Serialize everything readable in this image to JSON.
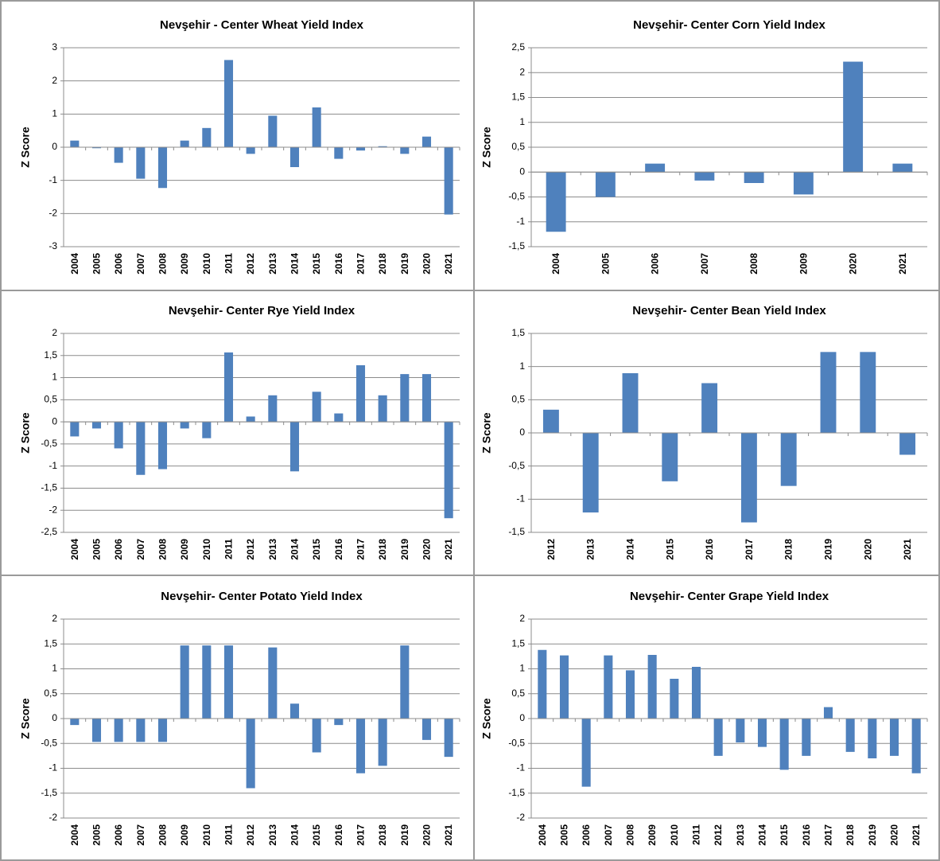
{
  "chart_data": [
    {
      "type": "bar",
      "title": "Nevşehir - Center Wheat Yield Index",
      "ylabel": "Z Score",
      "categories": [
        "2004",
        "2005",
        "2006",
        "2007",
        "2008",
        "2009",
        "2010",
        "2011",
        "2012",
        "2013",
        "2014",
        "2015",
        "2016",
        "2017",
        "2018",
        "2019",
        "2020",
        "2021"
      ],
      "values": [
        0.2,
        -0.03,
        -0.47,
        -0.95,
        -1.23,
        0.2,
        0.58,
        2.63,
        -0.2,
        0.95,
        -0.6,
        1.2,
        -0.35,
        -0.1,
        0.03,
        -0.2,
        0.32,
        -2.03
      ],
      "color": "#4f81bd",
      "ylim": [
        -3,
        3
      ],
      "yticks": [
        -3,
        -2,
        -1,
        0,
        1,
        2,
        3
      ],
      "grid": true
    },
    {
      "type": "bar",
      "title": "Nevşehir- Center Corn Yield Index",
      "ylabel": "Z Score",
      "categories": [
        "2004",
        "2005",
        "2006",
        "2007",
        "2008",
        "2009",
        "2020",
        "2021"
      ],
      "values": [
        -1.2,
        -0.5,
        0.17,
        -0.17,
        -0.22,
        -0.45,
        2.22,
        0.17
      ],
      "color": "#4f81bd",
      "ylim": [
        -1.5,
        2.5
      ],
      "yticks": [
        {
          "value": -1.5,
          "label": "-1,5"
        },
        -1,
        {
          "value": -0.5,
          "label": "-0,5"
        },
        0,
        {
          "value": 0.5,
          "label": "0,5"
        },
        1,
        {
          "value": 1.5,
          "label": "1,5"
        },
        2,
        {
          "value": 2.5,
          "label": "2,5"
        }
      ],
      "grid": true
    },
    {
      "type": "bar",
      "title": "Nevşehir- Center Rye Yield Index",
      "ylabel": "Z Score",
      "categories": [
        "2004",
        "2005",
        "2006",
        "2007",
        "2008",
        "2009",
        "2010",
        "2011",
        "2012",
        "2013",
        "2014",
        "2015",
        "2016",
        "2017",
        "2018",
        "2019",
        "2020",
        "2021"
      ],
      "values": [
        -0.33,
        -0.15,
        -0.6,
        -1.2,
        -1.07,
        -0.15,
        -0.37,
        1.57,
        0.12,
        0.6,
        -1.12,
        0.68,
        0.19,
        1.28,
        0.6,
        1.08,
        1.08,
        -2.18
      ],
      "color": "#4f81bd",
      "ylim": [
        -2.5,
        2
      ],
      "yticks": [
        {
          "value": -2.5,
          "label": "-2,5"
        },
        -2,
        {
          "value": -1.5,
          "label": "-1,5"
        },
        -1,
        {
          "value": -0.5,
          "label": "-0,5"
        },
        0,
        {
          "value": 0.5,
          "label": "0,5"
        },
        1,
        {
          "value": 1.5,
          "label": "1,5"
        },
        2
      ],
      "grid": true
    },
    {
      "type": "bar",
      "title": "Nevşehir- Center Bean Yield Index",
      "ylabel": "Z Score",
      "categories": [
        "2012",
        "2013",
        "2014",
        "2015",
        "2016",
        "2017",
        "2018",
        "2019",
        "2020",
        "2021"
      ],
      "values": [
        0.35,
        -1.2,
        0.9,
        -0.73,
        0.75,
        -1.35,
        -0.8,
        1.22,
        1.22,
        -0.33
      ],
      "color": "#4f81bd",
      "ylim": [
        -1.5,
        1.5
      ],
      "yticks": [
        {
          "value": -1.5,
          "label": "-1,5"
        },
        -1,
        {
          "value": -0.5,
          "label": "-0,5"
        },
        0,
        {
          "value": 0.5,
          "label": "0,5"
        },
        1,
        {
          "value": 1.5,
          "label": "1,5"
        }
      ],
      "grid": true
    },
    {
      "type": "bar",
      "title": "Nevşehir- Center Potato Yield Index",
      "ylabel": "Z Score",
      "categories": [
        "2004",
        "2005",
        "2006",
        "2007",
        "2008",
        "2009",
        "2010",
        "2011",
        "2012",
        "2013",
        "2014",
        "2015",
        "2016",
        "2017",
        "2018",
        "2019",
        "2020",
        "2021"
      ],
      "values": [
        -0.13,
        -0.47,
        -0.47,
        -0.47,
        -0.47,
        1.47,
        1.47,
        1.47,
        -1.4,
        1.43,
        0.3,
        -0.68,
        -0.13,
        -1.1,
        -0.95,
        1.47,
        -0.43,
        -0.77
      ],
      "color": "#4f81bd",
      "ylim": [
        -2,
        2
      ],
      "yticks": [
        -2,
        {
          "value": -1.5,
          "label": "-1,5"
        },
        -1,
        {
          "value": -0.5,
          "label": "-0,5"
        },
        0,
        {
          "value": 0.5,
          "label": "0,5"
        },
        1,
        {
          "value": 1.5,
          "label": "1,5"
        },
        2
      ],
      "grid": true
    },
    {
      "type": "bar",
      "title": "Nevşehir- Center Grape Yield Index",
      "ylabel": "Z Score",
      "categories": [
        "2004",
        "2005",
        "2006",
        "2007",
        "2008",
        "2009",
        "2010",
        "2011",
        "2012",
        "2013",
        "2014",
        "2015",
        "2016",
        "2017",
        "2018",
        "2019",
        "2020",
        "2021"
      ],
      "values": [
        1.38,
        1.27,
        -1.37,
        1.27,
        0.97,
        1.28,
        0.8,
        1.04,
        -0.75,
        -0.48,
        -0.57,
        -1.03,
        -0.75,
        0.23,
        -0.67,
        -0.8,
        -0.75,
        -1.1
      ],
      "color": "#4f81bd",
      "ylim": [
        -2,
        2
      ],
      "yticks": [
        -2,
        {
          "value": -1.5,
          "label": "-1,5"
        },
        -1,
        {
          "value": -0.5,
          "label": "-0,5"
        },
        0,
        {
          "value": 0.5,
          "label": "0,5"
        },
        1,
        {
          "value": 1.5,
          "label": "1,5"
        },
        2
      ],
      "grid": true
    }
  ]
}
